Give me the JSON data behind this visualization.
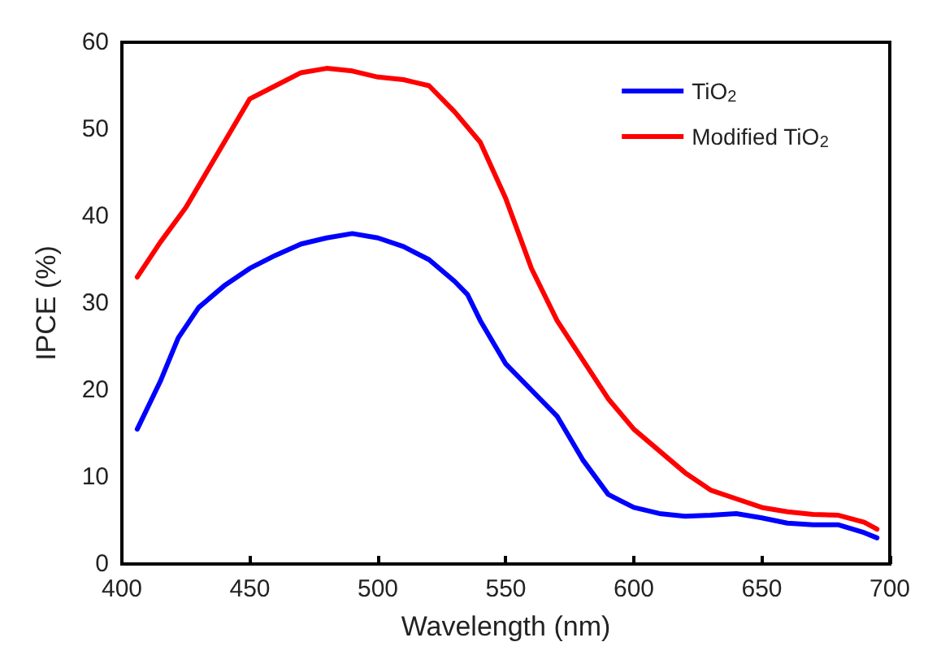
{
  "chart_data": {
    "type": "line",
    "xlabel": "Wavelength (nm)",
    "ylabel": "IPCE (%)",
    "xlim": [
      400,
      700
    ],
    "xticks": [
      400,
      450,
      500,
      550,
      600,
      650,
      700
    ],
    "ylim": [
      0,
      60
    ],
    "yticks": [
      0,
      10,
      20,
      30,
      40,
      50,
      60
    ],
    "grid": false,
    "legend": "top right",
    "marker": "none",
    "line_style": "solid",
    "x": [
      406,
      415,
      422,
      430,
      440,
      450,
      460,
      470,
      480,
      490,
      500,
      510,
      520,
      530,
      535,
      540,
      545,
      550,
      560,
      570,
      580,
      590,
      600,
      610,
      620,
      630,
      640,
      650,
      660,
      670,
      680,
      690,
      695
    ],
    "series": [
      {
        "name": "TiO$_{2}$",
        "color": "#0000ff",
        "values": [
          15.5,
          21,
          26,
          29.5,
          32,
          34,
          35.5,
          36.8,
          37.5,
          38,
          37.5,
          36.5,
          35,
          32.5,
          31,
          28,
          25.5,
          23,
          20,
          17,
          12,
          8,
          6.5,
          5.8,
          5.5,
          5.6,
          5.8,
          5.3,
          4.7,
          4.5,
          4.5,
          3.6,
          3.0
        ]
      },
      {
        "name": "Modified TiO$_{2}$",
        "color": "#ff0000",
        "x": [
          406,
          415,
          425,
          435,
          445,
          450,
          460,
          470,
          480,
          490,
          500,
          510,
          520,
          530,
          540,
          550,
          555,
          560,
          570,
          580,
          590,
          600,
          610,
          620,
          630,
          640,
          650,
          660,
          670,
          680,
          690,
          695
        ],
        "values": [
          33,
          37,
          41,
          46,
          51,
          53.5,
          55,
          56.5,
          57,
          56.7,
          56,
          55.7,
          55,
          52,
          48.5,
          42,
          38,
          34,
          28,
          23.5,
          19,
          15.5,
          13,
          10.5,
          8.5,
          7.5,
          6.5,
          6,
          5.7,
          5.6,
          4.8,
          4
        ]
      }
    ]
  }
}
